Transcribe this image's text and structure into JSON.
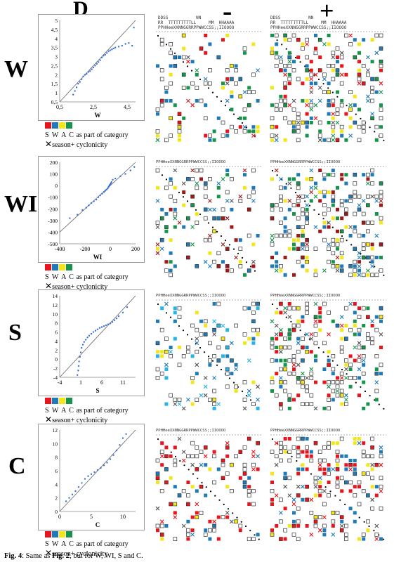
{
  "header": {
    "col_d": "D",
    "col_minus": "-",
    "col_plus": "+"
  },
  "colors": {
    "S": "#e8161c",
    "W": "#1f7bb8",
    "A": "#f3e61a",
    "C": "#16954a",
    "dark_red": "#a01818",
    "light_blue": "#27b5e8"
  },
  "legend": {
    "letters": "S W A C",
    "category_text": "as part of category",
    "cross_text": "season+ cyclonicity"
  },
  "col_header_text": {
    "line1": "DDSS           NN",
    "line2": "RR  TTTTTTTTTLL     MM  HHAAAA",
    "line3": "PPHHeeXXNNGGRRPPWWCCSS;;IIOOOO"
  },
  "panels": [
    {
      "label": "W",
      "chart_data": {
        "type": "scatter",
        "x_ticks": [
          "0,5",
          "2,5",
          "4,5"
        ],
        "y_ticks": [
          "0,5",
          "1",
          "1,5",
          "2",
          "2,5",
          "3",
          "3,5",
          "4",
          "4,5",
          "5"
        ],
        "xlabel": "W",
        "xlim": [
          0.5,
          5
        ],
        "ylim": [
          0.5,
          5
        ],
        "points": [
          [
            1.3,
            0.9
          ],
          [
            1.4,
            1.1
          ],
          [
            1.5,
            1.3
          ],
          [
            1.6,
            1.5
          ],
          [
            1.7,
            1.6
          ],
          [
            1.8,
            1.75
          ],
          [
            1.9,
            1.9
          ],
          [
            2.0,
            2.0
          ],
          [
            2.1,
            2.05
          ],
          [
            2.2,
            2.15
          ],
          [
            2.3,
            2.2
          ],
          [
            2.4,
            2.3
          ],
          [
            2.5,
            2.4
          ],
          [
            2.6,
            2.5
          ],
          [
            2.7,
            2.6
          ],
          [
            2.8,
            2.7
          ],
          [
            2.9,
            2.8
          ],
          [
            3.0,
            2.95
          ],
          [
            3.1,
            3.05
          ],
          [
            3.2,
            3.1
          ],
          [
            3.3,
            3.2
          ],
          [
            3.4,
            3.3
          ],
          [
            3.5,
            3.35
          ],
          [
            3.6,
            3.4
          ],
          [
            3.7,
            3.45
          ],
          [
            3.8,
            3.5
          ],
          [
            4.0,
            3.55
          ],
          [
            4.2,
            3.6
          ],
          [
            4.4,
            3.7
          ],
          [
            4.6,
            3.75
          ],
          [
            4.8,
            3.6
          ],
          [
            4.9,
            4.6
          ]
        ]
      }
    },
    {
      "label": "WI",
      "chart_data": {
        "type": "scatter",
        "x_ticks": [
          "-400",
          "-200",
          "0",
          "200"
        ],
        "y_ticks": [
          "200",
          "100",
          "0",
          "-100",
          "-200",
          "-300",
          "-400",
          "-500"
        ],
        "xlabel": "WI",
        "xlim": [
          -400,
          200
        ],
        "ylim": [
          -500,
          200
        ],
        "points": [
          [
            -320,
            -280
          ],
          [
            -260,
            -250
          ],
          [
            -220,
            -210
          ],
          [
            -190,
            -190
          ],
          [
            -170,
            -170
          ],
          [
            -150,
            -150
          ],
          [
            -130,
            -135
          ],
          [
            -110,
            -120
          ],
          [
            -95,
            -100
          ],
          [
            -80,
            -85
          ],
          [
            -65,
            -70
          ],
          [
            -50,
            -55
          ],
          [
            -40,
            -45
          ],
          [
            -30,
            -35
          ],
          [
            -20,
            -25
          ],
          [
            -15,
            -15
          ],
          [
            -10,
            -5
          ],
          [
            -5,
            5
          ],
          [
            0,
            10
          ],
          [
            5,
            20
          ],
          [
            10,
            30
          ],
          [
            20,
            50
          ],
          [
            40,
            60
          ],
          [
            80,
            80
          ],
          [
            120,
            100
          ],
          [
            160,
            130
          ],
          [
            190,
            160
          ]
        ]
      }
    },
    {
      "label": "S",
      "chart_data": {
        "type": "scatter",
        "x_ticks": [
          "-4",
          "1",
          "6",
          "11"
        ],
        "y_ticks": [
          "14",
          "12",
          "10",
          "8",
          "6",
          "4",
          "2",
          "0",
          "-2",
          "-4"
        ],
        "xlabel": "S",
        "xlim": [
          -4,
          14
        ],
        "ylim": [
          -4,
          14
        ],
        "points": [
          [
            0.2,
            -3.5
          ],
          [
            0.4,
            -2.5
          ],
          [
            0.5,
            -1.5
          ],
          [
            0.6,
            -0.5
          ],
          [
            0.8,
            0.5
          ],
          [
            1.0,
            1.5
          ],
          [
            1.2,
            2.5
          ],
          [
            1.5,
            3.2
          ],
          [
            1.8,
            3.8
          ],
          [
            2.2,
            4.3
          ],
          [
            2.6,
            4.8
          ],
          [
            3.0,
            5.2
          ],
          [
            3.5,
            5.6
          ],
          [
            4.0,
            6.0
          ],
          [
            4.5,
            6.3
          ],
          [
            5.0,
            6.6
          ],
          [
            5.5,
            6.9
          ],
          [
            6.0,
            7.1
          ],
          [
            6.5,
            7.3
          ],
          [
            7.0,
            7.5
          ],
          [
            7.5,
            7.7
          ],
          [
            8.0,
            7.9
          ],
          [
            8.5,
            8.2
          ],
          [
            9.0,
            8.6
          ],
          [
            9.5,
            9.0
          ],
          [
            10.0,
            9.5
          ],
          [
            11.0,
            10.3
          ],
          [
            12.0,
            11.5
          ]
        ]
      }
    },
    {
      "label": "C",
      "chart_data": {
        "type": "scatter",
        "x_ticks": [
          "0",
          "5",
          "10"
        ],
        "y_ticks": [
          "0",
          "2",
          "4",
          "6",
          "8",
          "10",
          "12"
        ],
        "xlabel": "C",
        "xlim": [
          0,
          12
        ],
        "ylim": [
          0,
          12
        ],
        "points": [
          [
            1.0,
            1.5
          ],
          [
            1.5,
            2.0
          ],
          [
            2.0,
            2.5
          ],
          [
            2.5,
            3.0
          ],
          [
            3.0,
            3.6
          ],
          [
            3.5,
            4.2
          ],
          [
            4.0,
            4.8
          ],
          [
            4.5,
            5.2
          ],
          [
            5.0,
            5.5
          ],
          [
            5.5,
            5.8
          ],
          [
            6.0,
            6.1
          ],
          [
            6.5,
            6.4
          ],
          [
            7.0,
            6.8
          ],
          [
            7.5,
            7.2
          ],
          [
            8.0,
            7.7
          ],
          [
            8.5,
            8.3
          ],
          [
            9.0,
            9.0
          ],
          [
            9.5,
            9.8
          ],
          [
            10.0,
            10.8
          ],
          [
            10.5,
            11.4
          ]
        ]
      }
    }
  ],
  "caption": {
    "fig": "Fig. 4",
    "text": ": Same as ",
    "ref": "Fig. 2",
    "rest": ", but for W, WI, S and C."
  }
}
